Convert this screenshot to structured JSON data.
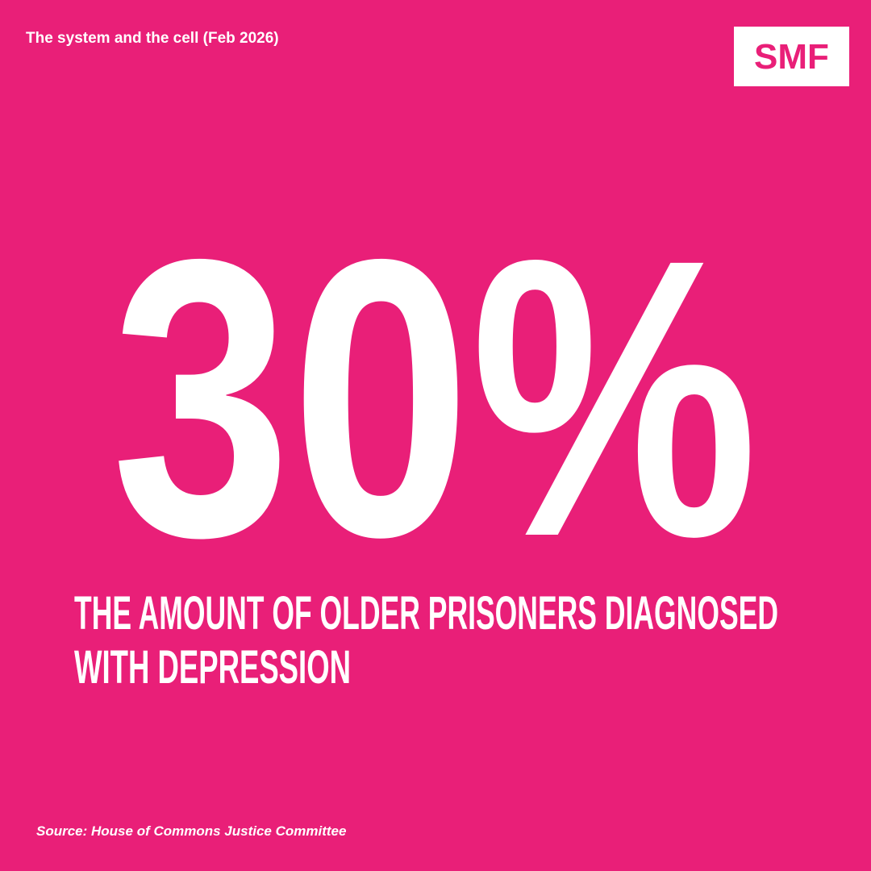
{
  "header": {
    "title": "The system and the cell (Feb 2026)",
    "logo": "SMF"
  },
  "stat": {
    "value": "30%",
    "description": [
      "THE AMOUNT OF OLDER PRISONERS DIAGNOSED",
      "WITH DEPRESSION"
    ]
  },
  "footer": {
    "source": "Source: House of Commons Justice Committee"
  }
}
